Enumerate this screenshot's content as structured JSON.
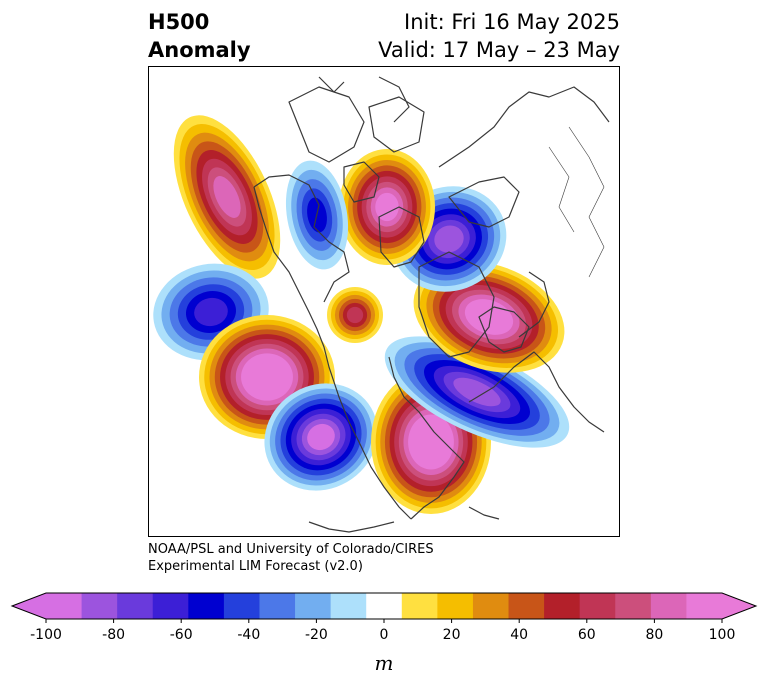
{
  "title": {
    "left_line1": "H500",
    "left_line2": "Anomaly",
    "right_line1": "Init: Fri 16 May 2025",
    "right_line2": "Valid: 17 May – 23 May"
  },
  "credit": {
    "line1": "NOAA/PSL and University of Colorado/CIRES",
    "line2": "Experimental LIM Forecast (v2.0)"
  },
  "colorbar": {
    "unit": "m",
    "ticks": [
      "-100",
      "-80",
      "-60",
      "-40",
      "-20",
      "0",
      "20",
      "40",
      "60",
      "80",
      "100"
    ],
    "levels": [
      -100,
      -90,
      -80,
      -70,
      -60,
      -50,
      -40,
      -30,
      -20,
      -10,
      10,
      20,
      30,
      40,
      50,
      60,
      70,
      80,
      90,
      100
    ],
    "colors": [
      "#d66fe3",
      "#9c54de",
      "#6a3adc",
      "#3c1fd6",
      "#0000d0",
      "#2440dc",
      "#4c78e8",
      "#72aef0",
      "#ade0fb",
      "#ffffff",
      "#ffe040",
      "#f5be00",
      "#e08c10",
      "#c85518",
      "#b3202a",
      "#c03555",
      "#cc4f7c",
      "#dc66b8",
      "#e87ad8"
    ],
    "extend_min_color": "#d66fe3",
    "extend_max_color": "#e87ad8"
  },
  "map": {
    "projection": "north-polar-stereographic",
    "anomaly_centers": [
      {
        "region": "Gulf of Alaska",
        "sign": "positive",
        "peak_m": 80
      },
      {
        "region": "North Pacific",
        "sign": "negative",
        "peak_m": -60
      },
      {
        "region": "Central North Pacific",
        "sign": "positive",
        "peak_m": 110
      },
      {
        "region": "Western United States",
        "sign": "negative",
        "peak_m": -90
      },
      {
        "region": "Eastern Canada / Great Lakes",
        "sign": "positive",
        "peak_m": 110
      },
      {
        "region": "North Atlantic",
        "sign": "negative",
        "peak_m": -80
      },
      {
        "region": "Arctic Ocean",
        "sign": "positive",
        "peak_m": 60
      },
      {
        "region": "Western Europe",
        "sign": "positive",
        "peak_m": 100
      },
      {
        "region": "Scandinavia / Barents Sea",
        "sign": "negative",
        "peak_m": -80
      },
      {
        "region": "East Siberia",
        "sign": "positive",
        "peak_m": 90
      },
      {
        "region": "Northeast Siberia",
        "sign": "negative",
        "peak_m": -50
      }
    ]
  }
}
